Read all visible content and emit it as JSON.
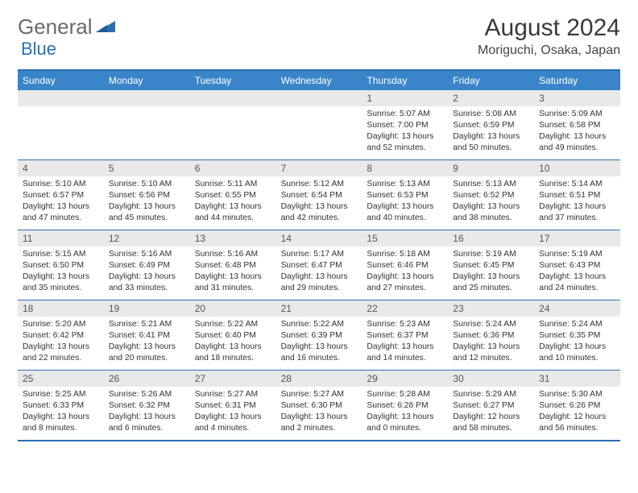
{
  "logo": {
    "general": "General",
    "blue": "Blue"
  },
  "title": "August 2024",
  "location": "Moriguchi, Osaka, Japan",
  "colors": {
    "header_bg": "#3a85c9",
    "border": "#2a6fb0",
    "daynum_bg": "#e9e9e9",
    "text": "#333333",
    "logo_gray": "#6a6a6a",
    "logo_blue": "#2a6fb0"
  },
  "weekdays": [
    "Sunday",
    "Monday",
    "Tuesday",
    "Wednesday",
    "Thursday",
    "Friday",
    "Saturday"
  ],
  "weeks": [
    [
      null,
      null,
      null,
      null,
      {
        "n": "1",
        "sr": "Sunrise: 5:07 AM",
        "ss": "Sunset: 7:00 PM",
        "dl": "Daylight: 13 hours and 52 minutes."
      },
      {
        "n": "2",
        "sr": "Sunrise: 5:08 AM",
        "ss": "Sunset: 6:59 PM",
        "dl": "Daylight: 13 hours and 50 minutes."
      },
      {
        "n": "3",
        "sr": "Sunrise: 5:09 AM",
        "ss": "Sunset: 6:58 PM",
        "dl": "Daylight: 13 hours and 49 minutes."
      }
    ],
    [
      {
        "n": "4",
        "sr": "Sunrise: 5:10 AM",
        "ss": "Sunset: 6:57 PM",
        "dl": "Daylight: 13 hours and 47 minutes."
      },
      {
        "n": "5",
        "sr": "Sunrise: 5:10 AM",
        "ss": "Sunset: 6:56 PM",
        "dl": "Daylight: 13 hours and 45 minutes."
      },
      {
        "n": "6",
        "sr": "Sunrise: 5:11 AM",
        "ss": "Sunset: 6:55 PM",
        "dl": "Daylight: 13 hours and 44 minutes."
      },
      {
        "n": "7",
        "sr": "Sunrise: 5:12 AM",
        "ss": "Sunset: 6:54 PM",
        "dl": "Daylight: 13 hours and 42 minutes."
      },
      {
        "n": "8",
        "sr": "Sunrise: 5:13 AM",
        "ss": "Sunset: 6:53 PM",
        "dl": "Daylight: 13 hours and 40 minutes."
      },
      {
        "n": "9",
        "sr": "Sunrise: 5:13 AM",
        "ss": "Sunset: 6:52 PM",
        "dl": "Daylight: 13 hours and 38 minutes."
      },
      {
        "n": "10",
        "sr": "Sunrise: 5:14 AM",
        "ss": "Sunset: 6:51 PM",
        "dl": "Daylight: 13 hours and 37 minutes."
      }
    ],
    [
      {
        "n": "11",
        "sr": "Sunrise: 5:15 AM",
        "ss": "Sunset: 6:50 PM",
        "dl": "Daylight: 13 hours and 35 minutes."
      },
      {
        "n": "12",
        "sr": "Sunrise: 5:16 AM",
        "ss": "Sunset: 6:49 PM",
        "dl": "Daylight: 13 hours and 33 minutes."
      },
      {
        "n": "13",
        "sr": "Sunrise: 5:16 AM",
        "ss": "Sunset: 6:48 PM",
        "dl": "Daylight: 13 hours and 31 minutes."
      },
      {
        "n": "14",
        "sr": "Sunrise: 5:17 AM",
        "ss": "Sunset: 6:47 PM",
        "dl": "Daylight: 13 hours and 29 minutes."
      },
      {
        "n": "15",
        "sr": "Sunrise: 5:18 AM",
        "ss": "Sunset: 6:46 PM",
        "dl": "Daylight: 13 hours and 27 minutes."
      },
      {
        "n": "16",
        "sr": "Sunrise: 5:19 AM",
        "ss": "Sunset: 6:45 PM",
        "dl": "Daylight: 13 hours and 25 minutes."
      },
      {
        "n": "17",
        "sr": "Sunrise: 5:19 AM",
        "ss": "Sunset: 6:43 PM",
        "dl": "Daylight: 13 hours and 24 minutes."
      }
    ],
    [
      {
        "n": "18",
        "sr": "Sunrise: 5:20 AM",
        "ss": "Sunset: 6:42 PM",
        "dl": "Daylight: 13 hours and 22 minutes."
      },
      {
        "n": "19",
        "sr": "Sunrise: 5:21 AM",
        "ss": "Sunset: 6:41 PM",
        "dl": "Daylight: 13 hours and 20 minutes."
      },
      {
        "n": "20",
        "sr": "Sunrise: 5:22 AM",
        "ss": "Sunset: 6:40 PM",
        "dl": "Daylight: 13 hours and 18 minutes."
      },
      {
        "n": "21",
        "sr": "Sunrise: 5:22 AM",
        "ss": "Sunset: 6:39 PM",
        "dl": "Daylight: 13 hours and 16 minutes."
      },
      {
        "n": "22",
        "sr": "Sunrise: 5:23 AM",
        "ss": "Sunset: 6:37 PM",
        "dl": "Daylight: 13 hours and 14 minutes."
      },
      {
        "n": "23",
        "sr": "Sunrise: 5:24 AM",
        "ss": "Sunset: 6:36 PM",
        "dl": "Daylight: 13 hours and 12 minutes."
      },
      {
        "n": "24",
        "sr": "Sunrise: 5:24 AM",
        "ss": "Sunset: 6:35 PM",
        "dl": "Daylight: 13 hours and 10 minutes."
      }
    ],
    [
      {
        "n": "25",
        "sr": "Sunrise: 5:25 AM",
        "ss": "Sunset: 6:33 PM",
        "dl": "Daylight: 13 hours and 8 minutes."
      },
      {
        "n": "26",
        "sr": "Sunrise: 5:26 AM",
        "ss": "Sunset: 6:32 PM",
        "dl": "Daylight: 13 hours and 6 minutes."
      },
      {
        "n": "27",
        "sr": "Sunrise: 5:27 AM",
        "ss": "Sunset: 6:31 PM",
        "dl": "Daylight: 13 hours and 4 minutes."
      },
      {
        "n": "28",
        "sr": "Sunrise: 5:27 AM",
        "ss": "Sunset: 6:30 PM",
        "dl": "Daylight: 13 hours and 2 minutes."
      },
      {
        "n": "29",
        "sr": "Sunrise: 5:28 AM",
        "ss": "Sunset: 6:28 PM",
        "dl": "Daylight: 13 hours and 0 minutes."
      },
      {
        "n": "30",
        "sr": "Sunrise: 5:29 AM",
        "ss": "Sunset: 6:27 PM",
        "dl": "Daylight: 12 hours and 58 minutes."
      },
      {
        "n": "31",
        "sr": "Sunrise: 5:30 AM",
        "ss": "Sunset: 6:26 PM",
        "dl": "Daylight: 12 hours and 56 minutes."
      }
    ]
  ]
}
